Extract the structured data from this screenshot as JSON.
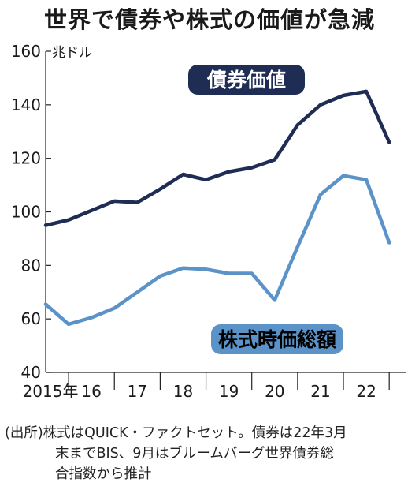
{
  "title": "世界で債券や株式の価値が急減",
  "source_lines": [
    "(出所)株式はQUICK・ファクトセット。債券は22年3月",
    "末までBIS、9月はブルームバーグ世界債券総",
    "合指数から推計"
  ],
  "chart_data": {
    "type": "line",
    "unit_label": "兆ドル",
    "ylim": [
      40,
      160
    ],
    "yticks": [
      160,
      140,
      120,
      100,
      80,
      60,
      40
    ],
    "xlim": [
      2015,
      2022.875
    ],
    "x_tick_labels": [
      "2015年",
      "16",
      "17",
      "18",
      "19",
      "20",
      "21",
      "22"
    ],
    "x_tick_positions": [
      2015,
      2016,
      2017,
      2018,
      2019,
      2020,
      2021,
      2022
    ],
    "grid": false,
    "series": [
      {
        "name": "債券価値",
        "color": "#1f2d55",
        "label_bg": "#1f2d55",
        "label_color": "#ffffff",
        "x": [
          2015.0,
          2015.5,
          2016.0,
          2016.5,
          2017.0,
          2017.5,
          2018.0,
          2018.5,
          2019.0,
          2019.5,
          2020.0,
          2020.5,
          2021.0,
          2021.5,
          2022.0,
          2022.5
        ],
        "y": [
          95,
          97,
          100.5,
          104,
          103.5,
          108.5,
          114,
          112,
          115,
          116.5,
          119.5,
          132.5,
          140,
          143.5,
          145,
          126
        ]
      },
      {
        "name": "株式時価総額",
        "color": "#5b93c9",
        "label_bg": "#5b93c9",
        "label_color": "#000000",
        "x": [
          2015.0,
          2015.5,
          2016.0,
          2016.5,
          2017.0,
          2017.5,
          2018.0,
          2018.5,
          2019.0,
          2019.5,
          2020.0,
          2020.5,
          2021.0,
          2021.5,
          2022.0,
          2022.5
        ],
        "y": [
          65.5,
          58,
          60.5,
          64,
          70,
          76,
          79,
          78.5,
          77,
          77,
          67,
          87,
          106.5,
          113.5,
          112,
          88.5
        ]
      }
    ]
  }
}
